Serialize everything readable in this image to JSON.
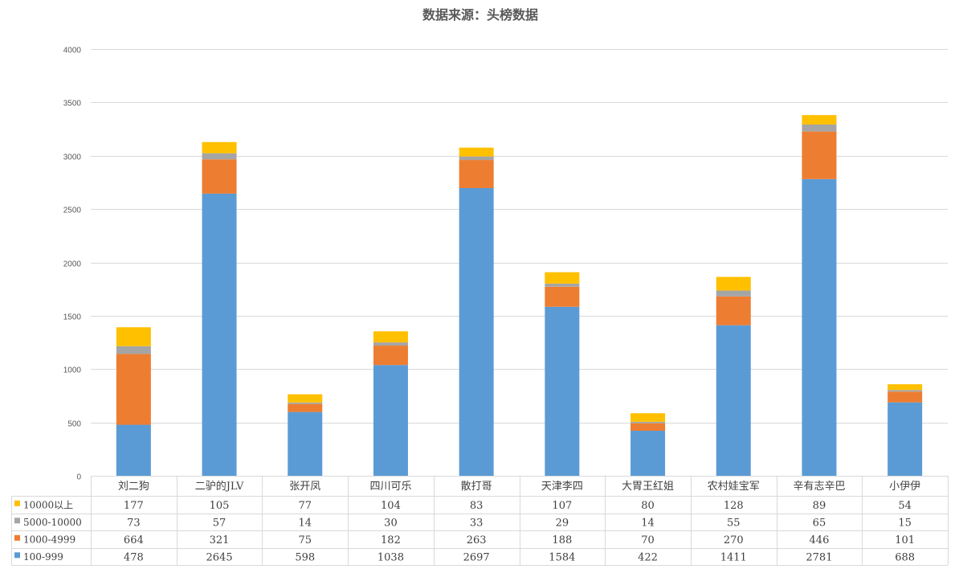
{
  "chart_data": {
    "type": "bar",
    "stacked": true,
    "title": "数据来源：头榜数据",
    "xlabel": "",
    "ylabel": "",
    "ylim": [
      0,
      4000
    ],
    "yticks": [
      0,
      500,
      1000,
      1500,
      2000,
      2500,
      3000,
      3500,
      4000
    ],
    "grid": true,
    "legend_position": "data-table-left",
    "categories": [
      "刘二狗",
      "二驴的JLV",
      "张开凤",
      "四川可乐",
      "散打哥",
      "天津李四",
      "大胃王红姐",
      "农村娃宝军",
      "辛有志辛巴",
      "小伊伊"
    ],
    "series": [
      {
        "name": "100-999",
        "color": "#5b9bd5",
        "values": [
          478,
          2645,
          598,
          1038,
          2697,
          1584,
          422,
          1411,
          2781,
          688
        ]
      },
      {
        "name": "1000-4999",
        "color": "#ed7d31",
        "values": [
          664,
          321,
          75,
          182,
          263,
          188,
          70,
          270,
          446,
          101
        ]
      },
      {
        "name": "5000-10000",
        "color": "#a5a5a5",
        "values": [
          73,
          57,
          14,
          30,
          33,
          29,
          14,
          55,
          65,
          15
        ]
      },
      {
        "name": "10000以上",
        "color": "#ffc000",
        "values": [
          177,
          105,
          77,
          104,
          83,
          107,
          80,
          128,
          89,
          54
        ]
      }
    ],
    "table_row_order": [
      "10000以上",
      "5000-10000",
      "1000-4999",
      "100-999"
    ]
  }
}
